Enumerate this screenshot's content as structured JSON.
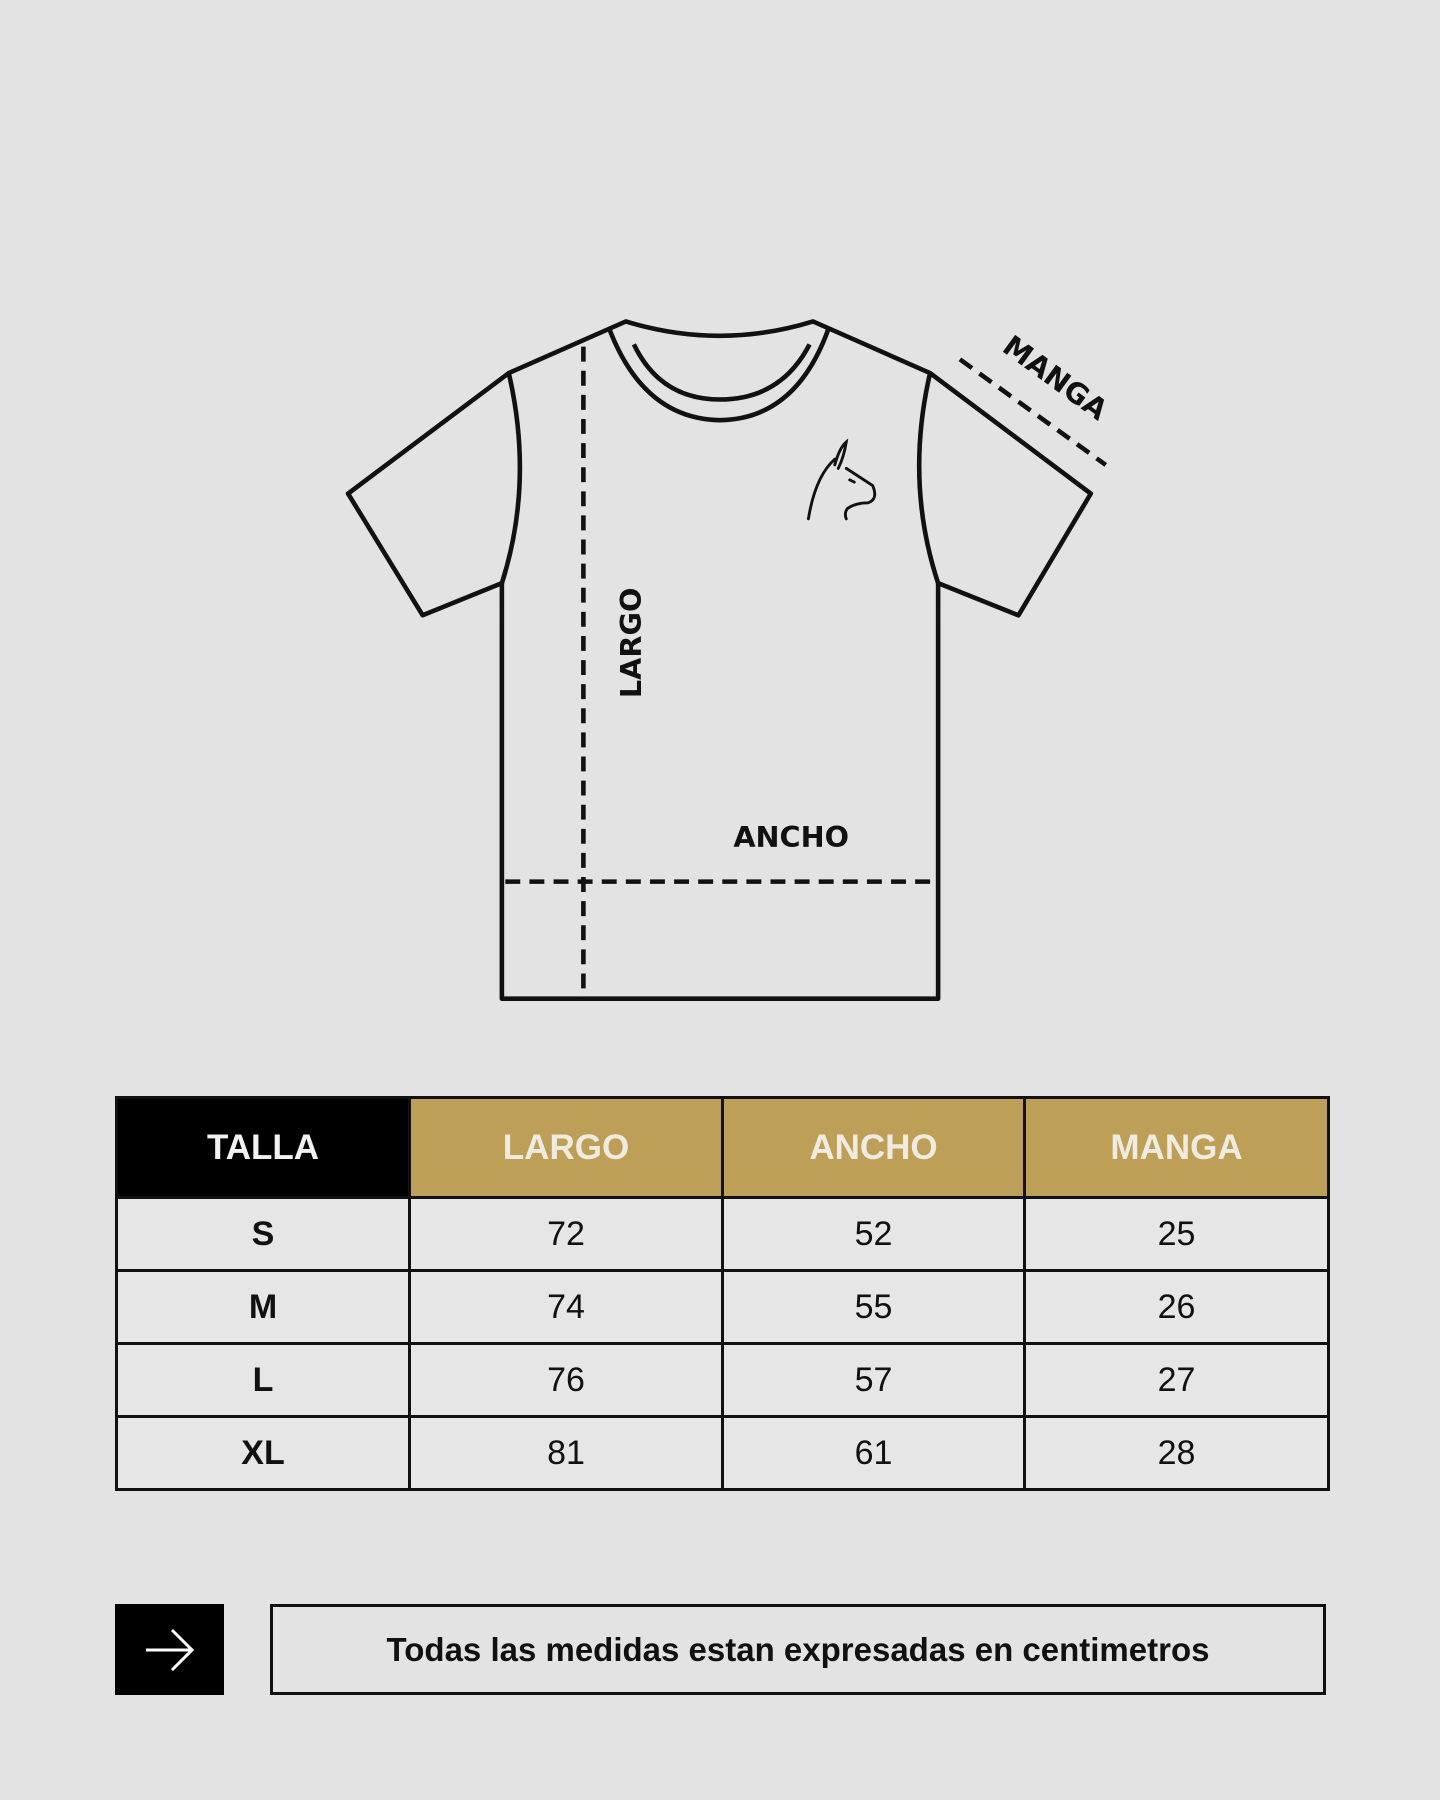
{
  "diagram": {
    "labels": {
      "length": "LARGO",
      "width": "ANCHO",
      "sleeve": "MANGA"
    },
    "logo": "llama-logo"
  },
  "table": {
    "headers": [
      "TALLA",
      "LARGO",
      "ANCHO",
      "MANGA"
    ],
    "rows": [
      [
        "S",
        "72",
        "52",
        "25"
      ],
      [
        "M",
        "74",
        "55",
        "26"
      ],
      [
        "L",
        "76",
        "57",
        "27"
      ],
      [
        "XL",
        "81",
        "61",
        "28"
      ]
    ],
    "colors": {
      "header_first": "#000000",
      "header_accent": "#bd9f58",
      "background": "#e3e3e3"
    }
  },
  "footer": {
    "icon": "arrow-right-icon",
    "note": "Todas las medidas estan expresadas en centimetros"
  }
}
